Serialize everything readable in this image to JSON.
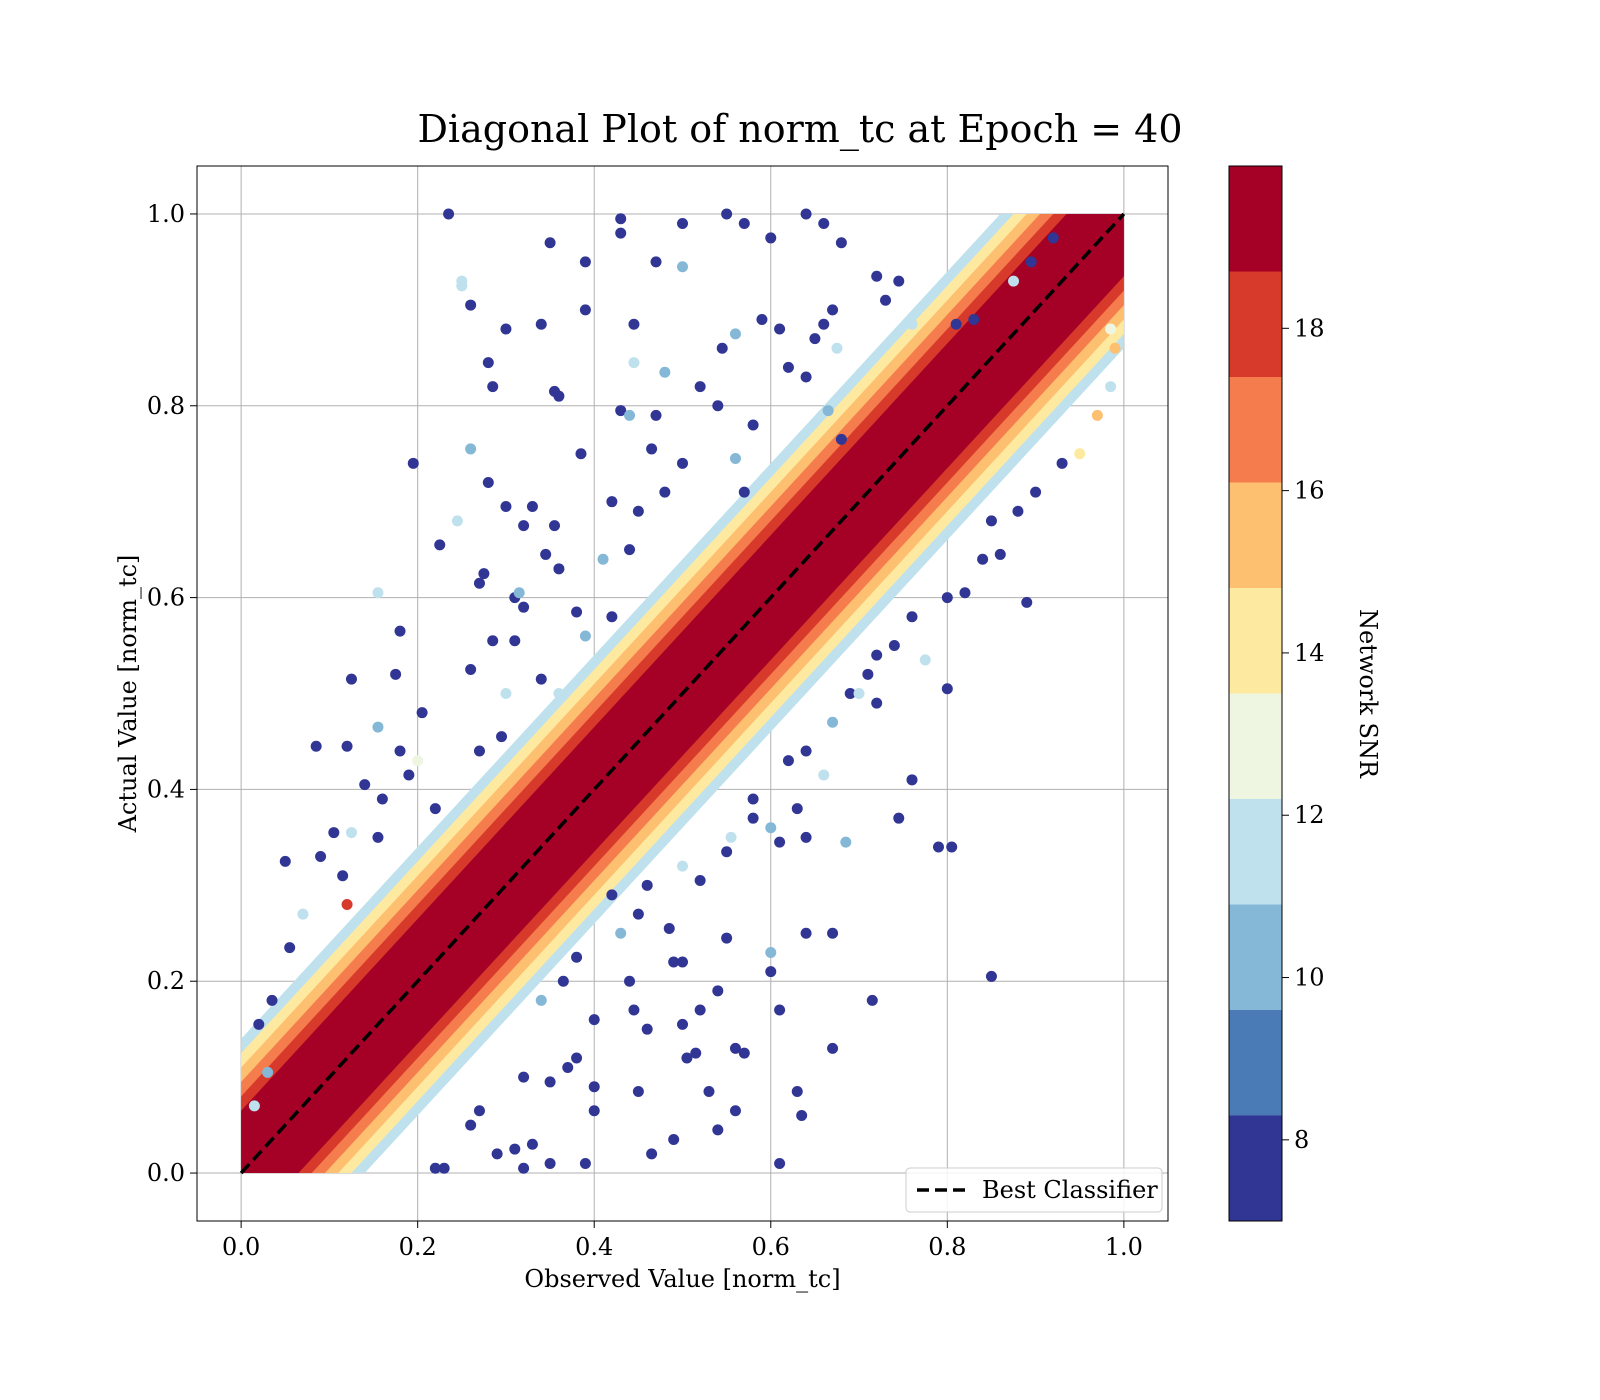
{
  "chart_data": {
    "type": "scatter",
    "title": "Diagonal Plot of norm_tc at Epoch = 40",
    "xlabel": "Observed Value [norm_tc]",
    "ylabel": "Actual Value [norm_tc]",
    "xlim": [
      -0.05,
      1.05
    ],
    "ylim": [
      -0.05,
      1.05
    ],
    "xticks": [
      0.0,
      0.2,
      0.4,
      0.6,
      0.8,
      1.0
    ],
    "yticks": [
      0.0,
      0.2,
      0.4,
      0.6,
      0.8,
      1.0
    ],
    "xtick_labels": [
      "0.0",
      "0.2",
      "0.4",
      "0.6",
      "0.8",
      "1.0"
    ],
    "ytick_labels": [
      "0.0",
      "0.2",
      "0.4",
      "0.6",
      "0.8",
      "1.0"
    ],
    "grid": true,
    "reference_line": {
      "name": "Best Classifier",
      "x": [
        0.0,
        1.0
      ],
      "y": [
        0.0,
        1.0
      ],
      "style": "dashed",
      "color": "#000000"
    },
    "legend": {
      "placement": "lower-right",
      "entries": [
        "Best Classifier"
      ]
    },
    "colorbar": {
      "label": "Network SNR",
      "range": [
        7,
        20
      ],
      "ticks": [
        8,
        10,
        12,
        14,
        16,
        18
      ],
      "tick_labels": [
        "8",
        "10",
        "12",
        "14",
        "16",
        "18"
      ],
      "bins": [
        {
          "from": 7.0,
          "to": 8.3,
          "color": "#313695"
        },
        {
          "from": 8.3,
          "to": 9.6,
          "color": "#4a7bb7"
        },
        {
          "from": 9.6,
          "to": 10.9,
          "color": "#84b8d6"
        },
        {
          "from": 10.9,
          "to": 12.2,
          "color": "#bfe1ed"
        },
        {
          "from": 12.2,
          "to": 13.5,
          "color": "#eef6e2"
        },
        {
          "from": 13.5,
          "to": 14.8,
          "color": "#fee9a0"
        },
        {
          "from": 14.8,
          "to": 16.1,
          "color": "#fdbf70"
        },
        {
          "from": 16.1,
          "to": 17.4,
          "color": "#f57c4d"
        },
        {
          "from": 17.4,
          "to": 18.7,
          "color": "#d73a2b"
        },
        {
          "from": 18.7,
          "to": 20.0,
          "color": "#a50026"
        }
      ]
    },
    "points": [
      {
        "x": 0.235,
        "y": 1.0,
        "snr": 8
      },
      {
        "x": 0.35,
        "y": 0.97,
        "snr": 8
      },
      {
        "x": 0.39,
        "y": 0.95,
        "snr": 8
      },
      {
        "x": 0.43,
        "y": 0.995,
        "snr": 8
      },
      {
        "x": 0.43,
        "y": 0.98,
        "snr": 8
      },
      {
        "x": 0.5,
        "y": 0.99,
        "snr": 8
      },
      {
        "x": 0.55,
        "y": 1.0,
        "snr": 8
      },
      {
        "x": 0.57,
        "y": 0.99,
        "snr": 8
      },
      {
        "x": 0.6,
        "y": 0.975,
        "snr": 8
      },
      {
        "x": 0.64,
        "y": 1.0,
        "snr": 8
      },
      {
        "x": 0.66,
        "y": 0.99,
        "snr": 8
      },
      {
        "x": 0.68,
        "y": 0.97,
        "snr": 8
      },
      {
        "x": 0.25,
        "y": 0.925,
        "snr": 11
      },
      {
        "x": 0.25,
        "y": 0.93,
        "snr": 11
      },
      {
        "x": 0.26,
        "y": 0.905,
        "snr": 8
      },
      {
        "x": 0.3,
        "y": 0.88,
        "snr": 8
      },
      {
        "x": 0.34,
        "y": 0.885,
        "snr": 8
      },
      {
        "x": 0.39,
        "y": 0.9,
        "snr": 8
      },
      {
        "x": 0.445,
        "y": 0.885,
        "snr": 8
      },
      {
        "x": 0.47,
        "y": 0.95,
        "snr": 8
      },
      {
        "x": 0.5,
        "y": 0.945,
        "snr": 10
      },
      {
        "x": 0.28,
        "y": 0.845,
        "snr": 8
      },
      {
        "x": 0.285,
        "y": 0.82,
        "snr": 8
      },
      {
        "x": 0.355,
        "y": 0.815,
        "snr": 8
      },
      {
        "x": 0.36,
        "y": 0.81,
        "snr": 8
      },
      {
        "x": 0.445,
        "y": 0.845,
        "snr": 11
      },
      {
        "x": 0.48,
        "y": 0.835,
        "snr": 10
      },
      {
        "x": 0.43,
        "y": 0.795,
        "snr": 8
      },
      {
        "x": 0.44,
        "y": 0.79,
        "snr": 10
      },
      {
        "x": 0.47,
        "y": 0.79,
        "snr": 8
      },
      {
        "x": 0.195,
        "y": 0.74,
        "snr": 8
      },
      {
        "x": 0.26,
        "y": 0.755,
        "snr": 10
      },
      {
        "x": 0.245,
        "y": 0.68,
        "snr": 11
      },
      {
        "x": 0.28,
        "y": 0.72,
        "snr": 8
      },
      {
        "x": 0.3,
        "y": 0.695,
        "snr": 8
      },
      {
        "x": 0.33,
        "y": 0.695,
        "snr": 8
      },
      {
        "x": 0.385,
        "y": 0.75,
        "snr": 8
      },
      {
        "x": 0.225,
        "y": 0.655,
        "snr": 8
      },
      {
        "x": 0.32,
        "y": 0.675,
        "snr": 8
      },
      {
        "x": 0.355,
        "y": 0.675,
        "snr": 8
      },
      {
        "x": 0.275,
        "y": 0.625,
        "snr": 8
      },
      {
        "x": 0.27,
        "y": 0.615,
        "snr": 8
      },
      {
        "x": 0.345,
        "y": 0.645,
        "snr": 8
      },
      {
        "x": 0.36,
        "y": 0.63,
        "snr": 8
      },
      {
        "x": 0.155,
        "y": 0.605,
        "snr": 11
      },
      {
        "x": 0.31,
        "y": 0.6,
        "snr": 8
      },
      {
        "x": 0.315,
        "y": 0.605,
        "snr": 10
      },
      {
        "x": 0.32,
        "y": 0.59,
        "snr": 8
      },
      {
        "x": 0.18,
        "y": 0.565,
        "snr": 8
      },
      {
        "x": 0.285,
        "y": 0.555,
        "snr": 8
      },
      {
        "x": 0.31,
        "y": 0.555,
        "snr": 8
      },
      {
        "x": 0.175,
        "y": 0.52,
        "snr": 8
      },
      {
        "x": 0.125,
        "y": 0.515,
        "snr": 8
      },
      {
        "x": 0.26,
        "y": 0.525,
        "snr": 8
      },
      {
        "x": 0.205,
        "y": 0.48,
        "snr": 8
      },
      {
        "x": 0.155,
        "y": 0.465,
        "snr": 10
      },
      {
        "x": 0.085,
        "y": 0.445,
        "snr": 8
      },
      {
        "x": 0.12,
        "y": 0.445,
        "snr": 8
      },
      {
        "x": 0.18,
        "y": 0.44,
        "snr": 8
      },
      {
        "x": 0.2,
        "y": 0.43,
        "snr": 13
      },
      {
        "x": 0.19,
        "y": 0.415,
        "snr": 8
      },
      {
        "x": 0.14,
        "y": 0.405,
        "snr": 8
      },
      {
        "x": 0.16,
        "y": 0.39,
        "snr": 8
      },
      {
        "x": 0.22,
        "y": 0.38,
        "snr": 8
      },
      {
        "x": 0.105,
        "y": 0.355,
        "snr": 8
      },
      {
        "x": 0.125,
        "y": 0.355,
        "snr": 11
      },
      {
        "x": 0.155,
        "y": 0.35,
        "snr": 8
      },
      {
        "x": 0.05,
        "y": 0.325,
        "snr": 8
      },
      {
        "x": 0.09,
        "y": 0.33,
        "snr": 8
      },
      {
        "x": 0.115,
        "y": 0.31,
        "snr": 8
      },
      {
        "x": 0.07,
        "y": 0.27,
        "snr": 11
      },
      {
        "x": 0.12,
        "y": 0.28,
        "snr": 18
      },
      {
        "x": 0.055,
        "y": 0.235,
        "snr": 8
      },
      {
        "x": 0.035,
        "y": 0.18,
        "snr": 8
      },
      {
        "x": 0.02,
        "y": 0.155,
        "snr": 8
      },
      {
        "x": 0.03,
        "y": 0.105,
        "snr": 10
      },
      {
        "x": 0.015,
        "y": 0.07,
        "snr": 11
      },
      {
        "x": 0.92,
        "y": 0.975,
        "snr": 8
      },
      {
        "x": 0.895,
        "y": 0.95,
        "snr": 8
      },
      {
        "x": 0.875,
        "y": 0.93,
        "snr": 11
      },
      {
        "x": 0.83,
        "y": 0.89,
        "snr": 8
      },
      {
        "x": 0.81,
        "y": 0.885,
        "snr": 8
      },
      {
        "x": 0.72,
        "y": 0.935,
        "snr": 8
      },
      {
        "x": 0.745,
        "y": 0.93,
        "snr": 8
      },
      {
        "x": 0.73,
        "y": 0.91,
        "snr": 8
      },
      {
        "x": 0.76,
        "y": 0.885,
        "snr": 11
      },
      {
        "x": 0.67,
        "y": 0.9,
        "snr": 8
      },
      {
        "x": 0.66,
        "y": 0.885,
        "snr": 8
      },
      {
        "x": 0.65,
        "y": 0.87,
        "snr": 8
      },
      {
        "x": 0.61,
        "y": 0.88,
        "snr": 8
      },
      {
        "x": 0.59,
        "y": 0.89,
        "snr": 8
      },
      {
        "x": 0.56,
        "y": 0.875,
        "snr": 10
      },
      {
        "x": 0.545,
        "y": 0.86,
        "snr": 8
      },
      {
        "x": 0.62,
        "y": 0.84,
        "snr": 8
      },
      {
        "x": 0.675,
        "y": 0.86,
        "snr": 11
      },
      {
        "x": 0.52,
        "y": 0.82,
        "snr": 8
      },
      {
        "x": 0.54,
        "y": 0.8,
        "snr": 8
      },
      {
        "x": 0.58,
        "y": 0.78,
        "snr": 8
      },
      {
        "x": 0.64,
        "y": 0.83,
        "snr": 8
      },
      {
        "x": 0.665,
        "y": 0.795,
        "snr": 10
      },
      {
        "x": 0.68,
        "y": 0.765,
        "snr": 8
      },
      {
        "x": 0.465,
        "y": 0.755,
        "snr": 8
      },
      {
        "x": 0.48,
        "y": 0.71,
        "snr": 8
      },
      {
        "x": 0.5,
        "y": 0.74,
        "snr": 8
      },
      {
        "x": 0.56,
        "y": 0.745,
        "snr": 10
      },
      {
        "x": 0.57,
        "y": 0.71,
        "snr": 8
      },
      {
        "x": 0.42,
        "y": 0.7,
        "snr": 8
      },
      {
        "x": 0.45,
        "y": 0.69,
        "snr": 8
      },
      {
        "x": 0.41,
        "y": 0.64,
        "snr": 10
      },
      {
        "x": 0.44,
        "y": 0.65,
        "snr": 8
      },
      {
        "x": 0.38,
        "y": 0.585,
        "snr": 8
      },
      {
        "x": 0.39,
        "y": 0.56,
        "snr": 10
      },
      {
        "x": 0.42,
        "y": 0.58,
        "snr": 8
      },
      {
        "x": 0.34,
        "y": 0.515,
        "snr": 8
      },
      {
        "x": 0.36,
        "y": 0.5,
        "snr": 11
      },
      {
        "x": 0.3,
        "y": 0.5,
        "snr": 12
      },
      {
        "x": 0.27,
        "y": 0.44,
        "snr": 8
      },
      {
        "x": 0.295,
        "y": 0.455,
        "snr": 8
      },
      {
        "x": 0.85,
        "y": 0.205,
        "snr": 8
      },
      {
        "x": 0.715,
        "y": 0.18,
        "snr": 8
      },
      {
        "x": 0.79,
        "y": 0.34,
        "snr": 8
      },
      {
        "x": 0.805,
        "y": 0.34,
        "snr": 8
      },
      {
        "x": 0.745,
        "y": 0.37,
        "snr": 8
      },
      {
        "x": 0.76,
        "y": 0.41,
        "snr": 8
      },
      {
        "x": 0.685,
        "y": 0.345,
        "snr": 10
      },
      {
        "x": 0.89,
        "y": 0.595,
        "snr": 8
      },
      {
        "x": 0.8,
        "y": 0.505,
        "snr": 8
      },
      {
        "x": 0.775,
        "y": 0.535,
        "snr": 11
      },
      {
        "x": 0.71,
        "y": 0.52,
        "snr": 8
      },
      {
        "x": 0.63,
        "y": 0.38,
        "snr": 8
      },
      {
        "x": 0.64,
        "y": 0.35,
        "snr": 8
      },
      {
        "x": 0.61,
        "y": 0.345,
        "snr": 8
      },
      {
        "x": 0.6,
        "y": 0.36,
        "snr": 10
      },
      {
        "x": 0.64,
        "y": 0.25,
        "snr": 8
      },
      {
        "x": 0.67,
        "y": 0.25,
        "snr": 8
      },
      {
        "x": 0.6,
        "y": 0.23,
        "snr": 10
      },
      {
        "x": 0.6,
        "y": 0.21,
        "snr": 8
      },
      {
        "x": 0.55,
        "y": 0.245,
        "snr": 8
      },
      {
        "x": 0.54,
        "y": 0.19,
        "snr": 8
      },
      {
        "x": 0.5,
        "y": 0.22,
        "snr": 8
      },
      {
        "x": 0.49,
        "y": 0.22,
        "snr": 8
      },
      {
        "x": 0.44,
        "y": 0.2,
        "snr": 8
      },
      {
        "x": 0.61,
        "y": 0.17,
        "snr": 8
      },
      {
        "x": 0.52,
        "y": 0.17,
        "snr": 8
      },
      {
        "x": 0.5,
        "y": 0.155,
        "snr": 8
      },
      {
        "x": 0.46,
        "y": 0.15,
        "snr": 8
      },
      {
        "x": 0.67,
        "y": 0.13,
        "snr": 8
      },
      {
        "x": 0.56,
        "y": 0.13,
        "snr": 8
      },
      {
        "x": 0.57,
        "y": 0.125,
        "snr": 8
      },
      {
        "x": 0.505,
        "y": 0.12,
        "snr": 8
      },
      {
        "x": 0.515,
        "y": 0.125,
        "snr": 8
      },
      {
        "x": 0.63,
        "y": 0.085,
        "snr": 8
      },
      {
        "x": 0.53,
        "y": 0.085,
        "snr": 8
      },
      {
        "x": 0.45,
        "y": 0.085,
        "snr": 8
      },
      {
        "x": 0.4,
        "y": 0.09,
        "snr": 8
      },
      {
        "x": 0.635,
        "y": 0.06,
        "snr": 8
      },
      {
        "x": 0.56,
        "y": 0.065,
        "snr": 8
      },
      {
        "x": 0.4,
        "y": 0.065,
        "snr": 8
      },
      {
        "x": 0.54,
        "y": 0.045,
        "snr": 8
      },
      {
        "x": 0.49,
        "y": 0.035,
        "snr": 8
      },
      {
        "x": 0.465,
        "y": 0.02,
        "snr": 8
      },
      {
        "x": 0.61,
        "y": 0.01,
        "snr": 8
      },
      {
        "x": 0.39,
        "y": 0.01,
        "snr": 8
      },
      {
        "x": 0.35,
        "y": 0.01,
        "snr": 8
      },
      {
        "x": 0.32,
        "y": 0.005,
        "snr": 8
      },
      {
        "x": 0.22,
        "y": 0.005,
        "snr": 8
      },
      {
        "x": 0.23,
        "y": 0.005,
        "snr": 8
      },
      {
        "x": 0.33,
        "y": 0.03,
        "snr": 8
      },
      {
        "x": 0.31,
        "y": 0.025,
        "snr": 8
      },
      {
        "x": 0.29,
        "y": 0.02,
        "snr": 8
      },
      {
        "x": 0.38,
        "y": 0.12,
        "snr": 8
      },
      {
        "x": 0.37,
        "y": 0.11,
        "snr": 8
      },
      {
        "x": 0.32,
        "y": 0.1,
        "snr": 8
      },
      {
        "x": 0.35,
        "y": 0.095,
        "snr": 8
      },
      {
        "x": 0.27,
        "y": 0.065,
        "snr": 8
      },
      {
        "x": 0.26,
        "y": 0.05,
        "snr": 8
      },
      {
        "x": 0.4,
        "y": 0.16,
        "snr": 8
      },
      {
        "x": 0.445,
        "y": 0.17,
        "snr": 8
      },
      {
        "x": 0.485,
        "y": 0.255,
        "snr": 8
      },
      {
        "x": 0.52,
        "y": 0.305,
        "snr": 8
      },
      {
        "x": 0.5,
        "y": 0.32,
        "snr": 11
      },
      {
        "x": 0.55,
        "y": 0.335,
        "snr": 8
      },
      {
        "x": 0.555,
        "y": 0.35,
        "snr": 12
      },
      {
        "x": 0.58,
        "y": 0.37,
        "snr": 8
      },
      {
        "x": 0.58,
        "y": 0.39,
        "snr": 8
      },
      {
        "x": 0.45,
        "y": 0.27,
        "snr": 8
      },
      {
        "x": 0.43,
        "y": 0.25,
        "snr": 10
      },
      {
        "x": 0.38,
        "y": 0.225,
        "snr": 8
      },
      {
        "x": 0.365,
        "y": 0.2,
        "snr": 8
      },
      {
        "x": 0.34,
        "y": 0.18,
        "snr": 10
      },
      {
        "x": 0.42,
        "y": 0.29,
        "snr": 8
      },
      {
        "x": 0.46,
        "y": 0.3,
        "snr": 8
      },
      {
        "x": 0.66,
        "y": 0.415,
        "snr": 11
      },
      {
        "x": 0.72,
        "y": 0.49,
        "snr": 8
      },
      {
        "x": 0.72,
        "y": 0.54,
        "snr": 8
      },
      {
        "x": 0.74,
        "y": 0.55,
        "snr": 8
      },
      {
        "x": 0.76,
        "y": 0.58,
        "snr": 8
      },
      {
        "x": 0.8,
        "y": 0.6,
        "snr": 8
      },
      {
        "x": 0.82,
        "y": 0.605,
        "snr": 8
      },
      {
        "x": 0.84,
        "y": 0.64,
        "snr": 8
      },
      {
        "x": 0.86,
        "y": 0.645,
        "snr": 8
      },
      {
        "x": 0.85,
        "y": 0.68,
        "snr": 8
      },
      {
        "x": 0.88,
        "y": 0.69,
        "snr": 8
      },
      {
        "x": 0.9,
        "y": 0.71,
        "snr": 8
      },
      {
        "x": 0.93,
        "y": 0.74,
        "snr": 8
      },
      {
        "x": 0.95,
        "y": 0.75,
        "snr": 14
      },
      {
        "x": 0.97,
        "y": 0.79,
        "snr": 15
      },
      {
        "x": 0.985,
        "y": 0.82,
        "snr": 11
      },
      {
        "x": 0.99,
        "y": 0.86,
        "snr": 16
      },
      {
        "x": 0.985,
        "y": 0.88,
        "snr": 13
      },
      {
        "x": 0.64,
        "y": 0.44,
        "snr": 8
      },
      {
        "x": 0.62,
        "y": 0.43,
        "snr": 8
      },
      {
        "x": 0.67,
        "y": 0.47,
        "snr": 10
      },
      {
        "x": 0.69,
        "y": 0.5,
        "snr": 8
      },
      {
        "x": 0.7,
        "y": 0.5,
        "snr": 11
      }
    ]
  }
}
